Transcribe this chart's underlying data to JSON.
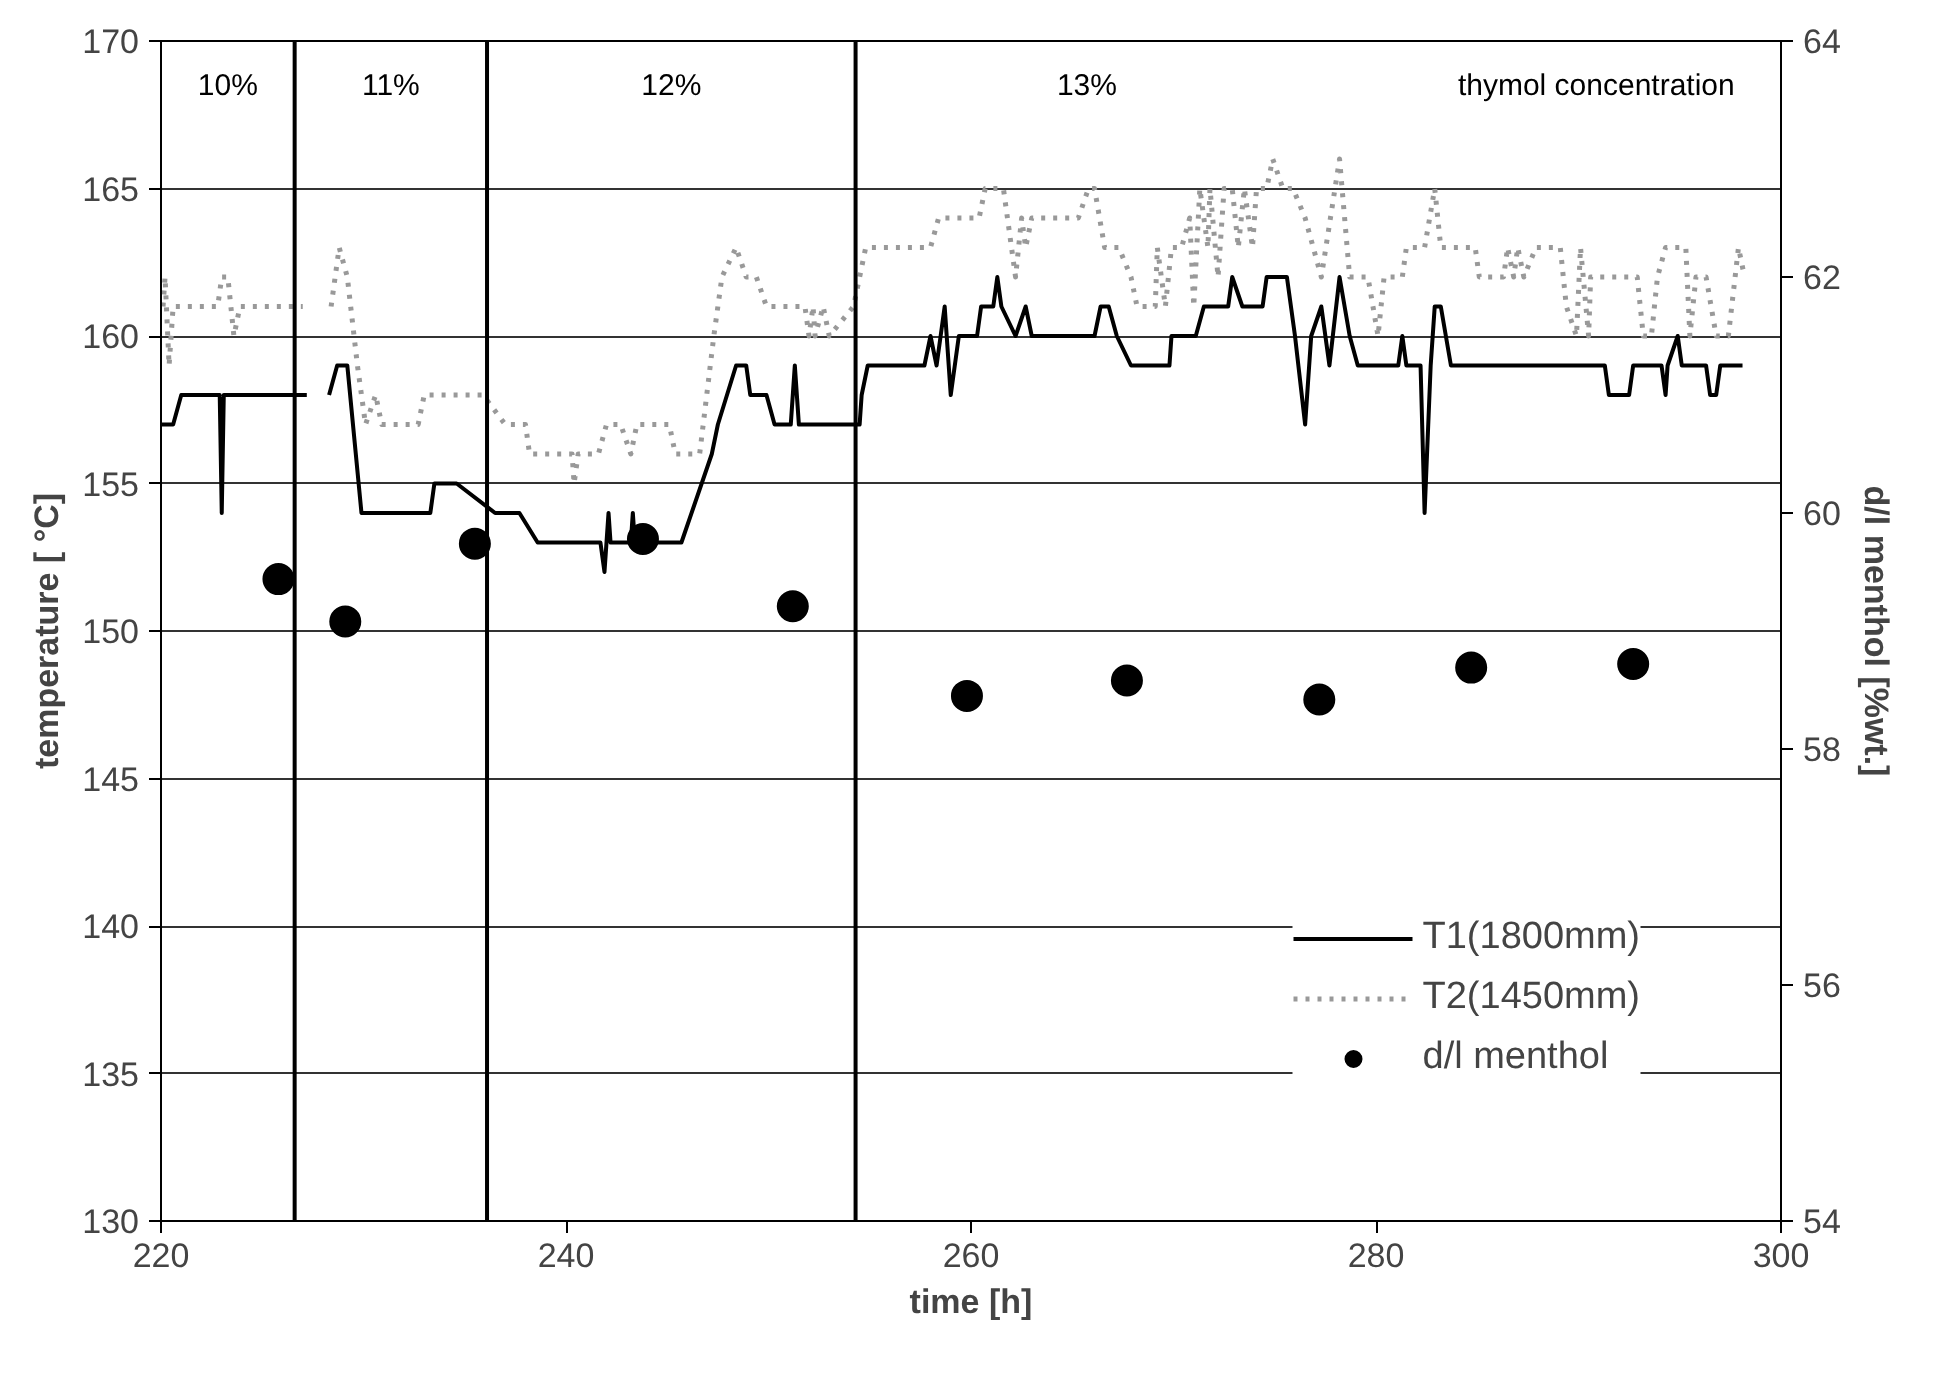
{
  "chart_data": {
    "type": "line",
    "xlabel": "time [h]",
    "ylabel": "temperature [ °C]",
    "y2label": "d/l menthol [%wt.]",
    "xlim": [
      220,
      300
    ],
    "xticks": [
      220,
      240,
      260,
      280,
      300
    ],
    "ylim": [
      130,
      170
    ],
    "yticks": [
      130,
      135,
      140,
      145,
      150,
      155,
      160,
      165,
      170
    ],
    "y2lim": [
      54,
      64
    ],
    "y2ticks": [
      54,
      56,
      58,
      60,
      62,
      64
    ],
    "grid": "y",
    "legend": "bottom right",
    "series": [
      {
        "name": "T1(1800mm)",
        "color": "#000000",
        "line_style": "solid",
        "x": [
          220.0,
          220.6,
          221.0,
          222.9,
          223.0,
          223.1,
          227.2,
          227.7,
          228.3,
          228.7,
          229.2,
          229.9,
          233.3,
          233.5,
          234.6,
          236.5,
          237.7,
          238.6,
          241.7,
          241.9,
          242.1,
          242.2,
          243.2,
          243.3,
          243.4,
          245.4,
          245.7,
          247.2,
          247.5,
          248.4,
          248.9,
          249.1,
          249.9,
          250.3,
          251.1,
          251.3,
          251.5,
          254.5,
          254.6,
          254.9,
          257.7,
          258.0,
          258.3,
          258.7,
          259.0,
          259.4,
          260.3,
          260.5,
          261.1,
          261.3,
          261.5,
          262.2,
          262.7,
          263.0,
          266.1,
          266.4,
          266.8,
          267.2,
          267.9,
          269.8,
          269.9,
          271.1,
          271.5,
          272.7,
          272.9,
          273.4,
          274.4,
          274.6,
          275.6,
          276.0,
          276.5,
          276.8,
          277.3,
          277.7,
          278.2,
          278.7,
          279.1,
          281.1,
          281.3,
          281.5,
          282.2,
          282.4,
          282.7,
          282.9,
          283.2,
          283.7,
          291.3,
          291.5,
          292.5,
          292.7,
          294.1,
          294.3,
          294.4,
          294.9,
          295.1,
          296.3,
          296.5,
          296.8,
          297.0,
          298.1
        ],
        "values": [
          157,
          157,
          158,
          158,
          154,
          158,
          158,
          null,
          158,
          159,
          159,
          154,
          154,
          155,
          155,
          154,
          154,
          153,
          153,
          152,
          154,
          153,
          153,
          154,
          153,
          153,
          153,
          156,
          157,
          159,
          159,
          158,
          158,
          157,
          157,
          159,
          157,
          157,
          158,
          159,
          159,
          160,
          159,
          161,
          158,
          160,
          160,
          161,
          161,
          162,
          161,
          160,
          161,
          160,
          160,
          161,
          161,
          160,
          159,
          159,
          160,
          160,
          161,
          161,
          162,
          161,
          161,
          162,
          162,
          160,
          157,
          160,
          161,
          159,
          162,
          160,
          159,
          159,
          160,
          159,
          159,
          154,
          159,
          161,
          161,
          159,
          159,
          158,
          158,
          159,
          159,
          158,
          159,
          160,
          159,
          159,
          158,
          158,
          159,
          159
        ]
      },
      {
        "name": "T2(1450mm)",
        "color": "#999999",
        "line_style": "dotted",
        "x": [
          220.1,
          220.2,
          220.4,
          220.6,
          222.8,
          223.0,
          223.3,
          223.6,
          223.9,
          227.0,
          227.7,
          228.4,
          228.8,
          229.2,
          229.7,
          230.1,
          230.6,
          230.9,
          232.7,
          233.0,
          235.9,
          237.0,
          238.0,
          238.2,
          240.3,
          240.4,
          240.6,
          241.6,
          242.0,
          242.7,
          243.2,
          243.5,
          245.1,
          245.4,
          246.6,
          247.3,
          247.7,
          248.4,
          248.9,
          249.4,
          249.9,
          251.8,
          252.0,
          252.2,
          252.3,
          252.7,
          253.0,
          254.2,
          254.8,
          258.0,
          258.4,
          260.4,
          260.7,
          261.6,
          262.0,
          262.2,
          262.5,
          262.7,
          263.0,
          265.3,
          265.8,
          266.1,
          266.6,
          267.3,
          267.9,
          268.2,
          269.1,
          269.2,
          269.6,
          269.9,
          270.4,
          270.8,
          271.0,
          271.3,
          271.7,
          271.8,
          272.2,
          272.5,
          272.9,
          273.2,
          273.5,
          273.9,
          274.1,
          274.6,
          274.9,
          275.4,
          275.9,
          276.5,
          277.3,
          278.2,
          278.7,
          279.6,
          280.1,
          280.4,
          281.3,
          281.5,
          282.4,
          282.9,
          283.2,
          284.9,
          285.1,
          286.3,
          286.5,
          286.8,
          287.0,
          287.3,
          287.9,
          289.1,
          289.4,
          289.9,
          290.1,
          290.5,
          290.6,
          292.9,
          293.2,
          293.6,
          293.9,
          294.3,
          295.3,
          295.5,
          295.8,
          296.3,
          296.8,
          297.4,
          297.9,
          298.2
        ],
        "values": [
          161,
          162,
          159,
          161,
          161,
          162,
          162,
          160,
          161,
          161,
          null,
          161,
          163,
          162,
          159,
          157,
          158,
          157,
          157,
          158,
          158,
          157,
          157,
          156,
          156,
          155,
          156,
          156,
          157,
          157,
          156,
          157,
          157,
          156,
          156,
          160,
          162,
          163,
          162,
          162,
          161,
          161,
          160,
          161,
          160,
          161,
          160,
          161,
          163,
          163,
          164,
          164,
          165,
          165,
          163,
          162,
          164,
          163,
          164,
          164,
          165,
          165,
          163,
          163,
          162,
          161,
          161,
          163,
          161,
          163,
          163,
          164,
          161,
          165,
          163,
          165,
          162,
          165,
          165,
          163,
          165,
          163,
          165,
          165,
          166,
          165,
          165,
          164,
          162,
          166,
          162,
          162,
          160,
          162,
          162,
          163,
          163,
          165,
          163,
          163,
          162,
          162,
          163,
          162,
          163,
          162,
          163,
          163,
          161,
          160,
          163,
          160,
          162,
          162,
          160,
          160,
          162,
          163,
          163,
          160,
          162,
          162,
          160,
          160,
          163,
          162
        ]
      },
      {
        "name": "d/l menthol",
        "type": "scatter",
        "axis": "y2",
        "marker": "circle",
        "color": "#000000",
        "x": [
          225.8,
          229.1,
          235.5,
          243.8,
          251.2,
          259.8,
          267.7,
          277.2,
          284.7,
          292.7
        ],
        "values": [
          59.44,
          59.08,
          59.74,
          59.78,
          59.21,
          58.45,
          58.58,
          58.42,
          58.69,
          58.72
        ]
      }
    ],
    "ref_lines": [
      {
        "axis": "x",
        "value": 226.6,
        "color": "#000000"
      },
      {
        "axis": "x",
        "value": 236.1,
        "color": "#000000"
      },
      {
        "axis": "x",
        "value": 254.3,
        "color": "#000000"
      }
    ],
    "annotations": [
      "10%",
      "11%",
      "12%",
      "13%",
      "thymol concentration"
    ]
  }
}
